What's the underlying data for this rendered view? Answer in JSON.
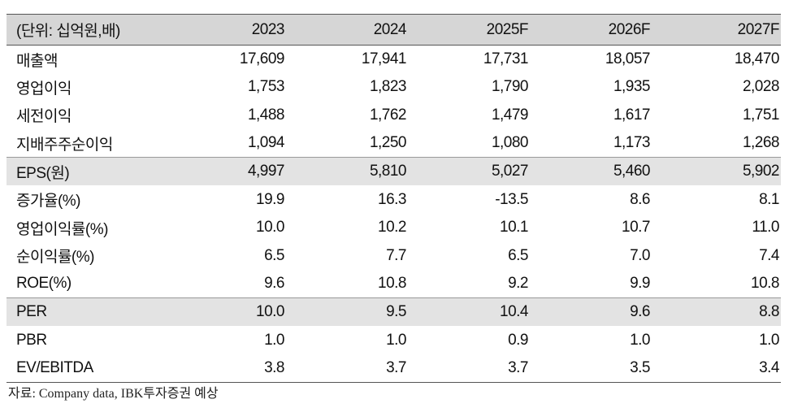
{
  "table": {
    "header": [
      "(단위: 십억원,배)",
      "2023",
      "2024",
      "2025F",
      "2026F",
      "2027F"
    ],
    "rows": [
      {
        "label": "매출액",
        "values": [
          "17,609",
          "17,941",
          "17,731",
          "18,057",
          "18,470"
        ]
      },
      {
        "label": "영업이익",
        "values": [
          "1,753",
          "1,823",
          "1,790",
          "1,935",
          "2,028"
        ]
      },
      {
        "label": "세전이익",
        "values": [
          "1,488",
          "1,762",
          "1,479",
          "1,617",
          "1,751"
        ]
      },
      {
        "label": "지배주주순이익",
        "values": [
          "1,094",
          "1,250",
          "1,080",
          "1,173",
          "1,268"
        ]
      },
      {
        "label": "EPS(원)",
        "values": [
          "4,997",
          "5,810",
          "5,027",
          "5,460",
          "5,902"
        ]
      },
      {
        "label": "증가율(%)",
        "values": [
          "19.9",
          "16.3",
          "-13.5",
          "8.6",
          "8.1"
        ]
      },
      {
        "label": "영업이익률(%)",
        "values": [
          "10.0",
          "10.2",
          "10.1",
          "10.7",
          "11.0"
        ]
      },
      {
        "label": "순이익률(%)",
        "values": [
          "6.5",
          "7.7",
          "6.5",
          "7.0",
          "7.4"
        ]
      },
      {
        "label": "ROE(%)",
        "values": [
          "9.6",
          "10.8",
          "9.2",
          "9.9",
          "10.8"
        ]
      },
      {
        "label": "PER",
        "values": [
          "10.0",
          "9.5",
          "10.4",
          "9.6",
          "8.8"
        ]
      },
      {
        "label": "PBR",
        "values": [
          "1.0",
          "1.0",
          "0.9",
          "1.0",
          "1.0"
        ]
      },
      {
        "label": "EV/EBITDA",
        "values": [
          "3.8",
          "3.7",
          "3.7",
          "3.5",
          "3.4"
        ]
      }
    ]
  },
  "source": "자료: Company data, IBK투자증권 예상",
  "colors": {
    "header_bg": "#d6d6d6",
    "shaded_row_bg": "#e3e3e3",
    "rule": "#555555"
  }
}
